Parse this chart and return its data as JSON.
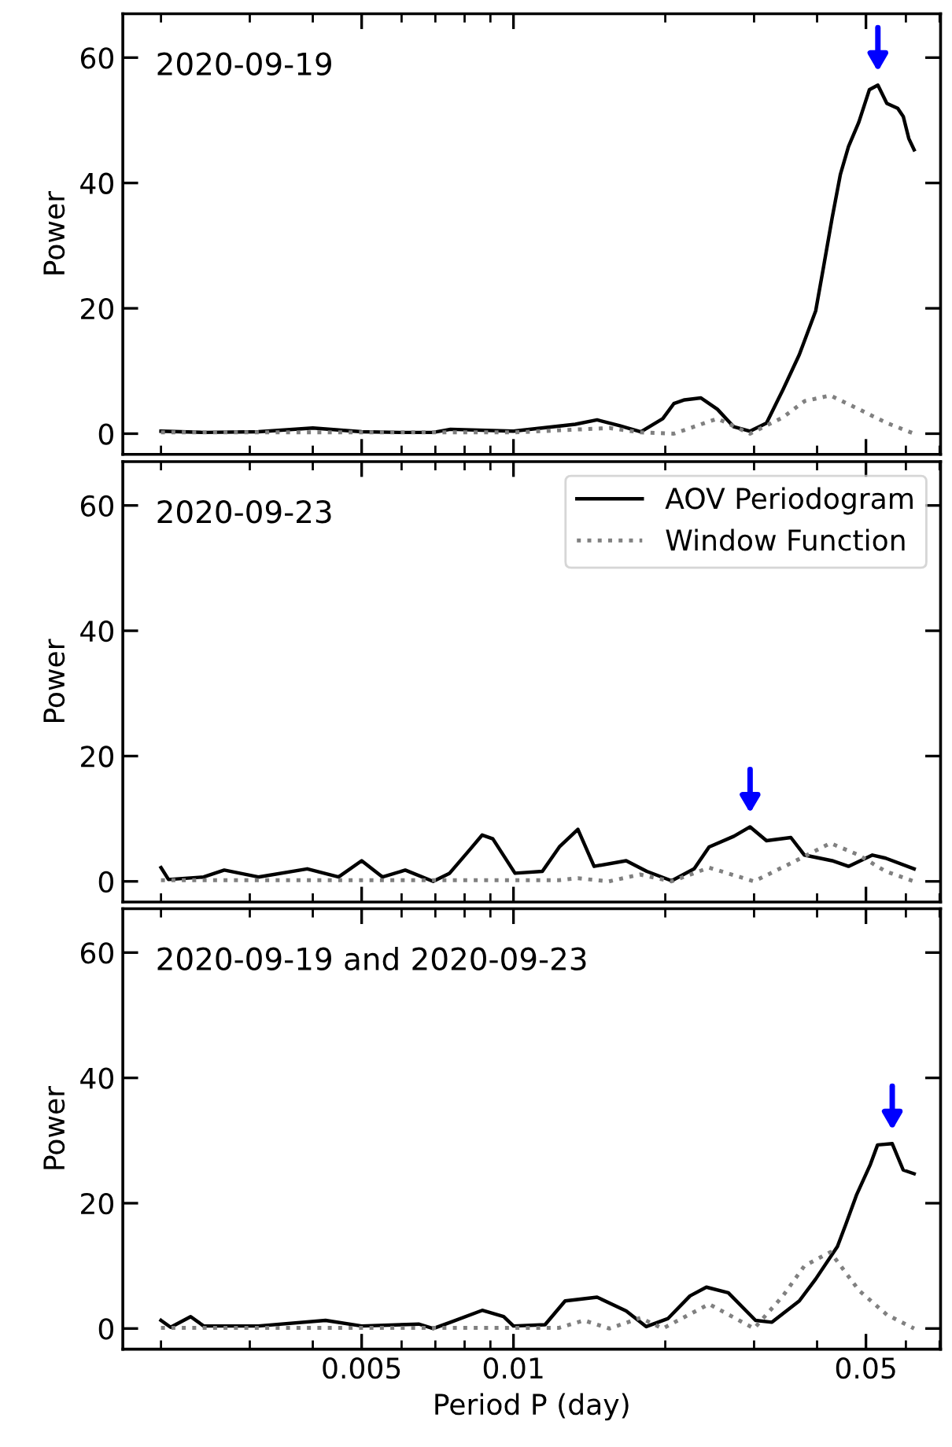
{
  "chart_data": [
    {
      "type": "line",
      "title": "2020-09-19",
      "ylabel": "Power",
      "log": "x",
      "xlim": [
        0.00168,
        0.0703
      ],
      "xticks": [
        0.005,
        0.01,
        0.05
      ],
      "ylim": [
        -3.3,
        67
      ],
      "yticks": [
        0,
        20,
        40,
        60
      ],
      "tick_labels": "y",
      "grid": false,
      "legend": false,
      "series": [
        {
          "color": "#000000",
          "line_style": "solid",
          "x": [
            0.002,
            0.00243,
            0.00312,
            0.004,
            0.005,
            0.00596,
            0.00693,
            0.0075,
            0.01,
            0.01326,
            0.01465,
            0.0162,
            0.01789,
            0.01977,
            0.0208,
            0.02184,
            0.02354,
            0.02537,
            0.02734,
            0.02946,
            0.03175,
            0.03422,
            0.03688,
            0.03975,
            0.0412,
            0.04284,
            0.0445,
            0.04617,
            0.0484,
            0.0508,
            0.0528,
            0.05501,
            0.05781,
            0.0593,
            0.0608,
            0.0623
          ],
          "values": [
            0.4,
            0.2,
            0.3,
            0.9,
            0.3,
            0.2,
            0.2,
            0.7,
            0.4,
            1.5,
            2.2,
            1.3,
            0.3,
            2.4,
            4.8,
            5.4,
            5.7,
            3.9,
            1.1,
            0.4,
            1.7,
            7,
            12.6,
            19.6,
            26.6,
            34.4,
            41.4,
            45.8,
            49.7,
            54.9,
            55.6,
            52.7,
            51.9,
            50.6,
            47.1,
            45.3
          ]
        },
        {
          "color": "#808080",
          "line_style": "dotted",
          "x": [
            0.002,
            0.005,
            0.01,
            0.0155,
            0.01789,
            0.0208,
            0.02537,
            0.02946,
            0.03422,
            0.0378,
            0.0425,
            0.0484,
            0.05501,
            0.0623
          ],
          "values": [
            0.2,
            0.2,
            0.2,
            0.9,
            0.2,
            0,
            2.4,
            0,
            2.6,
            5.2,
            6.1,
            3.9,
            1.7,
            0
          ]
        }
      ]
    },
    {
      "type": "line",
      "title": "2020-09-23",
      "ylabel": "Power",
      "log": "x",
      "xlim": [
        0.00168,
        0.0703
      ],
      "xticks": [
        0.005,
        0.01,
        0.05
      ],
      "ylim": [
        -3.3,
        67
      ],
      "yticks": [
        0,
        20,
        40,
        60
      ],
      "tick_labels": "y",
      "grid": false,
      "legend": "top right",
      "series": [
        {
          "name": "AOV Periodogram",
          "color": "#000000",
          "line_style": "solid",
          "x": [
            0.002,
            0.00207,
            0.00243,
            0.00267,
            0.00312,
            0.0039,
            0.0045,
            0.005,
            0.0055,
            0.0061,
            0.00693,
            0.00747,
            0.0082,
            0.00867,
            0.0091,
            0.01007,
            0.01141,
            0.01233,
            0.01342,
            0.01445,
            0.01673,
            0.01838,
            0.02059,
            0.02282,
            0.02443,
            0.02736,
            0.02946,
            0.03175,
            0.03549,
            0.03775,
            0.04284,
            0.04617,
            0.0515,
            0.0547,
            0.0623
          ],
          "values": [
            2.2,
            0.3,
            0.7,
            1.8,
            0.7,
            2.0,
            0.7,
            3.3,
            0.7,
            1.8,
            0,
            1.3,
            5.1,
            7.4,
            6.8,
            1.3,
            1.6,
            5.5,
            8.3,
            2.4,
            3.3,
            1.6,
            0.1,
            2.0,
            5.5,
            7.2,
            8.7,
            6.5,
            7.0,
            4.2,
            3.3,
            2.4,
            4.2,
            3.7,
            2.0
          ]
        },
        {
          "name": "Window Function",
          "color": "#808080",
          "line_style": "dotted",
          "x": [
            0.002,
            0.005,
            0.0123,
            0.01342,
            0.01545,
            0.01782,
            0.02059,
            0.02443,
            0.03,
            0.03549,
            0.0425,
            0.0484,
            0.0547,
            0.0623
          ],
          "values": [
            0.2,
            0.2,
            0.2,
            0.5,
            0,
            1.1,
            0,
            2.2,
            0,
            2.9,
            6.1,
            4.2,
            1.6,
            0
          ]
        }
      ]
    },
    {
      "type": "line",
      "title": "2020-09-19 and 2020-09-23",
      "xlabel": "Period P (day)",
      "ylabel": "Power",
      "log": "x",
      "xlim": [
        0.00168,
        0.0703
      ],
      "xticks": [
        0.005,
        0.01,
        0.05
      ],
      "ylim": [
        -3.3,
        67
      ],
      "yticks": [
        0,
        20,
        40,
        60
      ],
      "grid": false,
      "legend": false,
      "series": [
        {
          "color": "#000000",
          "line_style": "solid",
          "x": [
            0.002,
            0.00209,
            0.00229,
            0.00243,
            0.00312,
            0.00424,
            0.005,
            0.0065,
            0.00693,
            0.0075,
            0.00867,
            0.00956,
            0.01,
            0.01155,
            0.01266,
            0.01465,
            0.01673,
            0.01834,
            0.02026,
            0.02239,
            0.02413,
            0.02667,
            0.0302,
            0.03255,
            0.03688,
            0.03975,
            0.0439,
            0.0456,
            0.04794,
            0.05103,
            0.05272,
            0.05638,
            0.05927,
            0.0623
          ],
          "values": [
            1.3,
            0.2,
            1.9,
            0.4,
            0.4,
            1.3,
            0.4,
            0.7,
            0,
            1.0,
            2.9,
            1.9,
            0.4,
            0.6,
            4.4,
            5.0,
            2.8,
            0.3,
            1.6,
            5.2,
            6.6,
            5.7,
            1.3,
            1.0,
            4.4,
            7.9,
            13.1,
            16.6,
            21.4,
            26.2,
            29.3,
            29.5,
            25.3,
            24.7
          ]
        },
        {
          "color": "#808080",
          "line_style": "dotted",
          "x": [
            0.002,
            0.005,
            0.0123,
            0.0138,
            0.0155,
            0.01786,
            0.01977,
            0.02443,
            0.03,
            0.03422,
            0.03775,
            0.0425,
            0.0484,
            0.05501,
            0.0623
          ],
          "values": [
            0.1,
            0.1,
            0.1,
            1.3,
            0,
            1.7,
            0,
            3.9,
            0,
            5.2,
            10,
            12.2,
            6.1,
            2.2,
            0
          ]
        }
      ]
    }
  ]
}
